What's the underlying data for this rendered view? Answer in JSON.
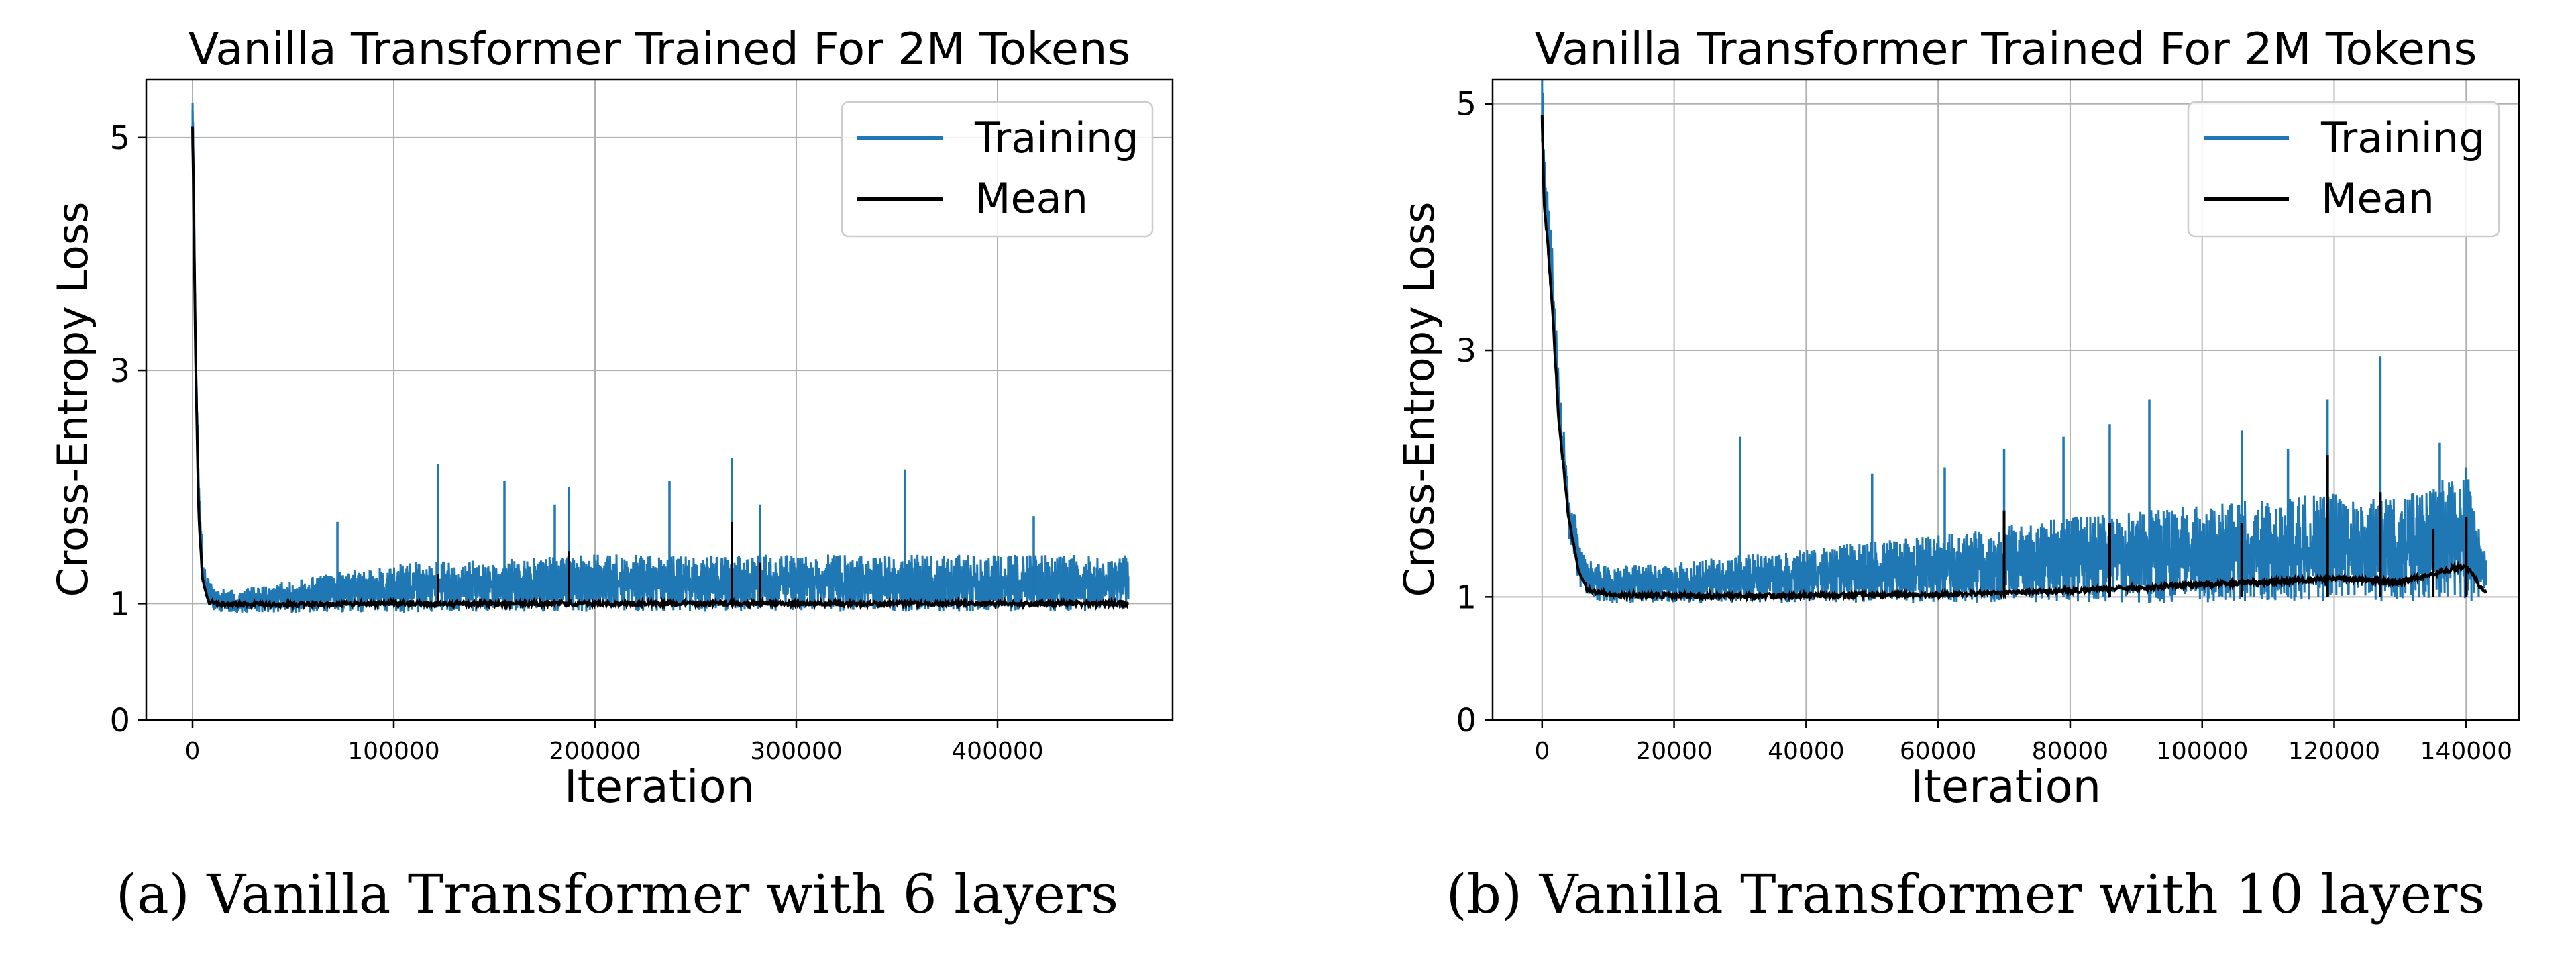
{
  "charts": {
    "a": {
      "caption": "(a) Vanilla Transformer with 6 layers",
      "legend": {
        "training": "Training",
        "mean": "Mean"
      }
    },
    "b": {
      "caption": "(b) Vanilla Transformer with 10 layers",
      "legend": {
        "training": "Training",
        "mean": "Mean"
      }
    }
  },
  "colors": {
    "training": "#1f77b4",
    "mean": "#000000",
    "grid": "#b0b0b0"
  },
  "chart_data": [
    {
      "type": "line",
      "title": "Vanilla Transformer Trained For 2M Tokens",
      "xlabel": "Iteration",
      "ylabel": "Cross-Entropy Loss",
      "xlim": [
        -23000,
        487000
      ],
      "ylim": [
        0,
        5.5
      ],
      "xticks": [
        0,
        100000,
        200000,
        300000,
        400000
      ],
      "xtick_labels": [
        "0",
        "100000",
        "200000",
        "300000",
        "400000"
      ],
      "yticks": [
        0,
        1,
        3,
        5
      ],
      "ytick_labels": [
        "0",
        "1",
        "3",
        "5"
      ],
      "grid": true,
      "legend_position": "top-right",
      "x_max": 465000,
      "series": [
        {
          "name": "Training",
          "x": [
            0,
            500,
            1500,
            3000,
            5000,
            8000,
            12000,
            20000,
            50000,
            100000,
            150000,
            200000,
            250000,
            300000,
            350000,
            400000,
            465000
          ],
          "values": [
            5.3,
            4.7,
            3.3,
            2.0,
            1.3,
            1.05,
            1.0,
            1.0,
            1.02,
            1.05,
            1.08,
            1.1,
            1.1,
            1.1,
            1.1,
            1.1,
            1.1
          ],
          "band_low": [
            5.0,
            4.5,
            3.1,
            1.8,
            1.15,
            0.95,
            0.92,
            0.92,
            0.92,
            0.92,
            0.93,
            0.93,
            0.93,
            0.93,
            0.93,
            0.93,
            0.93
          ],
          "band_high": [
            5.4,
            4.9,
            3.5,
            2.2,
            1.45,
            1.2,
            1.15,
            1.12,
            1.2,
            1.35,
            1.38,
            1.42,
            1.42,
            1.42,
            1.42,
            1.42,
            1.42
          ],
          "spikes": [
            [
              72000,
              1.7
            ],
            [
              122000,
              2.2
            ],
            [
              155000,
              2.05
            ],
            [
              180000,
              1.85
            ],
            [
              187000,
              2.0
            ],
            [
              237000,
              2.05
            ],
            [
              268000,
              2.25
            ],
            [
              282000,
              1.85
            ],
            [
              354000,
              2.15
            ],
            [
              418000,
              1.75
            ]
          ]
        },
        {
          "name": "Mean",
          "x": [
            0,
            500,
            1500,
            3000,
            5000,
            8000,
            12000,
            20000,
            50000,
            100000,
            150000,
            200000,
            250000,
            300000,
            350000,
            400000,
            465000
          ],
          "values": [
            5.1,
            4.5,
            3.1,
            1.8,
            1.2,
            1.02,
            1.0,
            0.99,
            0.99,
            1.0,
            1.0,
            1.0,
            1.0,
            1.0,
            1.0,
            1.0,
            1.0
          ],
          "spikes": [
            [
              122000,
              1.25
            ],
            [
              187000,
              1.45
            ],
            [
              268000,
              1.7
            ],
            [
              282000,
              1.35
            ]
          ]
        }
      ]
    },
    {
      "type": "line",
      "title": "Vanilla Transformer Trained For 2M Tokens",
      "xlabel": "Iteration",
      "ylabel": "Cross-Entropy Loss",
      "xlim": [
        -7500,
        148000
      ],
      "ylim": [
        0,
        5.2
      ],
      "xticks": [
        0,
        20000,
        40000,
        60000,
        80000,
        100000,
        120000,
        140000
      ],
      "xtick_labels": [
        "0",
        "20000",
        "40000",
        "60000",
        "80000",
        "100000",
        "120000",
        "140000"
      ],
      "yticks": [
        0,
        1,
        3,
        5
      ],
      "ytick_labels": [
        "0",
        "1",
        "3",
        "5"
      ],
      "grid": true,
      "legend_position": "top-right",
      "x_max": 143000,
      "series": [
        {
          "name": "Training",
          "x": [
            0,
            300,
            800,
            1500,
            2500,
            4000,
            5500,
            7000,
            10000,
            20000,
            40000,
            60000,
            80000,
            100000,
            110000,
            120000,
            130000,
            140000,
            143000
          ],
          "values": [
            5.0,
            4.4,
            4.1,
            3.6,
            2.6,
            1.8,
            1.35,
            1.15,
            1.08,
            1.05,
            1.08,
            1.12,
            1.2,
            1.3,
            1.3,
            1.35,
            1.35,
            1.45,
            1.15
          ],
          "band_low": [
            4.6,
            4.1,
            3.8,
            3.3,
            2.3,
            1.5,
            1.1,
            0.98,
            0.95,
            0.95,
            0.95,
            0.95,
            0.95,
            0.95,
            0.96,
            0.96,
            0.96,
            0.96,
            0.96
          ],
          "band_high": [
            5.25,
            4.6,
            4.3,
            3.9,
            2.8,
            2.0,
            1.5,
            1.3,
            1.25,
            1.28,
            1.4,
            1.5,
            1.65,
            1.75,
            1.8,
            1.85,
            1.8,
            2.05,
            1.35
          ],
          "spikes": [
            [
              30000,
              2.3
            ],
            [
              50000,
              2.0
            ],
            [
              61000,
              2.05
            ],
            [
              70000,
              2.2
            ],
            [
              79000,
              2.3
            ],
            [
              86000,
              2.4
            ],
            [
              92000,
              2.6
            ],
            [
              106000,
              2.35
            ],
            [
              113000,
              2.2
            ],
            [
              119000,
              2.6
            ],
            [
              127000,
              2.95
            ],
            [
              136000,
              2.25
            ],
            [
              140000,
              2.05
            ]
          ]
        },
        {
          "name": "Mean",
          "x": [
            0,
            300,
            800,
            1500,
            2500,
            4000,
            5500,
            7000,
            10000,
            20000,
            40000,
            60000,
            80000,
            100000,
            110000,
            120000,
            130000,
            140000,
            143000
          ],
          "values": [
            4.9,
            4.2,
            3.9,
            3.4,
            2.45,
            1.65,
            1.2,
            1.05,
            1.02,
            1.01,
            1.01,
            1.02,
            1.05,
            1.1,
            1.12,
            1.15,
            1.12,
            1.25,
            1.02
          ],
          "spikes": [
            [
              70000,
              1.7
            ],
            [
              86000,
              1.6
            ],
            [
              106000,
              1.6
            ],
            [
              119000,
              2.15
            ],
            [
              127000,
              1.85
            ],
            [
              135000,
              1.55
            ],
            [
              140000,
              1.65
            ]
          ]
        }
      ]
    }
  ]
}
